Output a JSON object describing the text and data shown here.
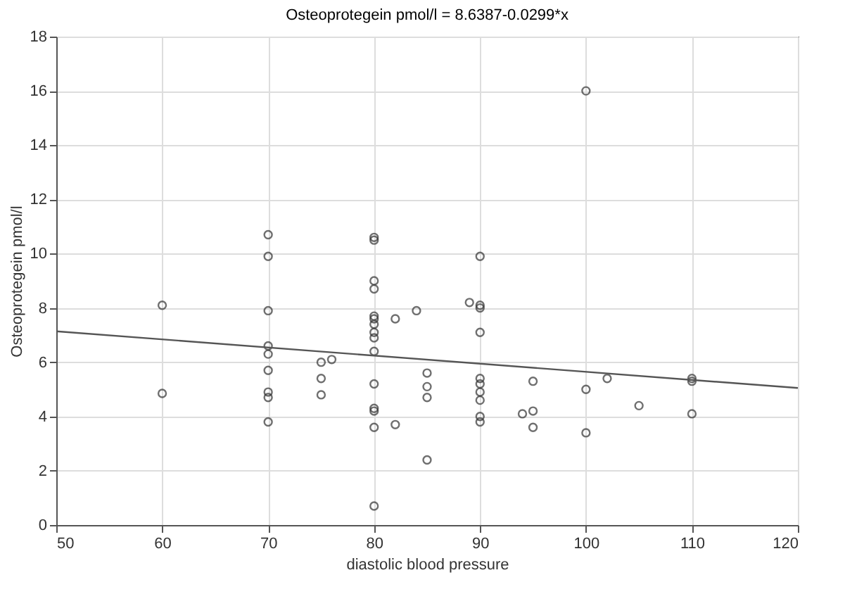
{
  "chart_data": {
    "type": "scatter",
    "title": "Osteoprotegein pmol/l = 8.6387-0.0299*x",
    "xlabel": "diastolic blood pressure",
    "ylabel": "Osteoprotegein pmol/l",
    "xlim": [
      50,
      120
    ],
    "xticks": [
      50,
      60,
      70,
      80,
      90,
      100,
      110,
      120
    ],
    "ylim": [
      0,
      18
    ],
    "yticks": [
      0,
      2,
      4,
      6,
      8,
      10,
      12,
      14,
      16,
      18
    ],
    "grid": true,
    "marker": "circle",
    "series": [
      {
        "color": "#333333",
        "x": [
          60,
          60,
          70,
          70,
          70,
          70,
          70,
          70,
          70,
          70,
          70,
          75,
          75,
          75,
          76,
          80,
          80,
          80,
          80,
          80,
          80,
          80,
          80,
          80,
          80,
          80,
          80,
          80,
          80,
          80,
          82,
          82,
          84,
          85,
          85,
          85,
          85,
          89,
          90,
          90,
          90,
          90,
          90,
          90,
          90,
          90,
          90,
          90,
          94,
          95,
          95,
          95,
          100,
          100,
          100,
          102,
          105,
          110,
          110,
          110
        ],
        "values": [
          8.1,
          4.85,
          10.7,
          9.9,
          7.9,
          6.6,
          6.3,
          5.7,
          4.9,
          4.7,
          3.8,
          6.0,
          5.4,
          4.8,
          6.1,
          10.6,
          10.5,
          9.0,
          8.7,
          7.7,
          7.6,
          7.4,
          7.1,
          6.9,
          6.4,
          5.2,
          4.3,
          4.2,
          3.6,
          0.7,
          7.6,
          3.7,
          7.9,
          5.6,
          5.1,
          4.7,
          2.4,
          8.2,
          9.9,
          8.1,
          8.0,
          7.1,
          5.4,
          5.2,
          4.9,
          4.6,
          4.0,
          3.8,
          4.1,
          5.3,
          4.2,
          3.6,
          16.0,
          5.0,
          3.4,
          5.4,
          4.4,
          5.4,
          5.3,
          4.1
        ]
      },
      {
        "type": "line",
        "color": "#555555",
        "x": [
          50,
          120
        ],
        "values": [
          7.14,
          5.05
        ],
        "line_style": "solid",
        "marker": "none"
      }
    ]
  }
}
